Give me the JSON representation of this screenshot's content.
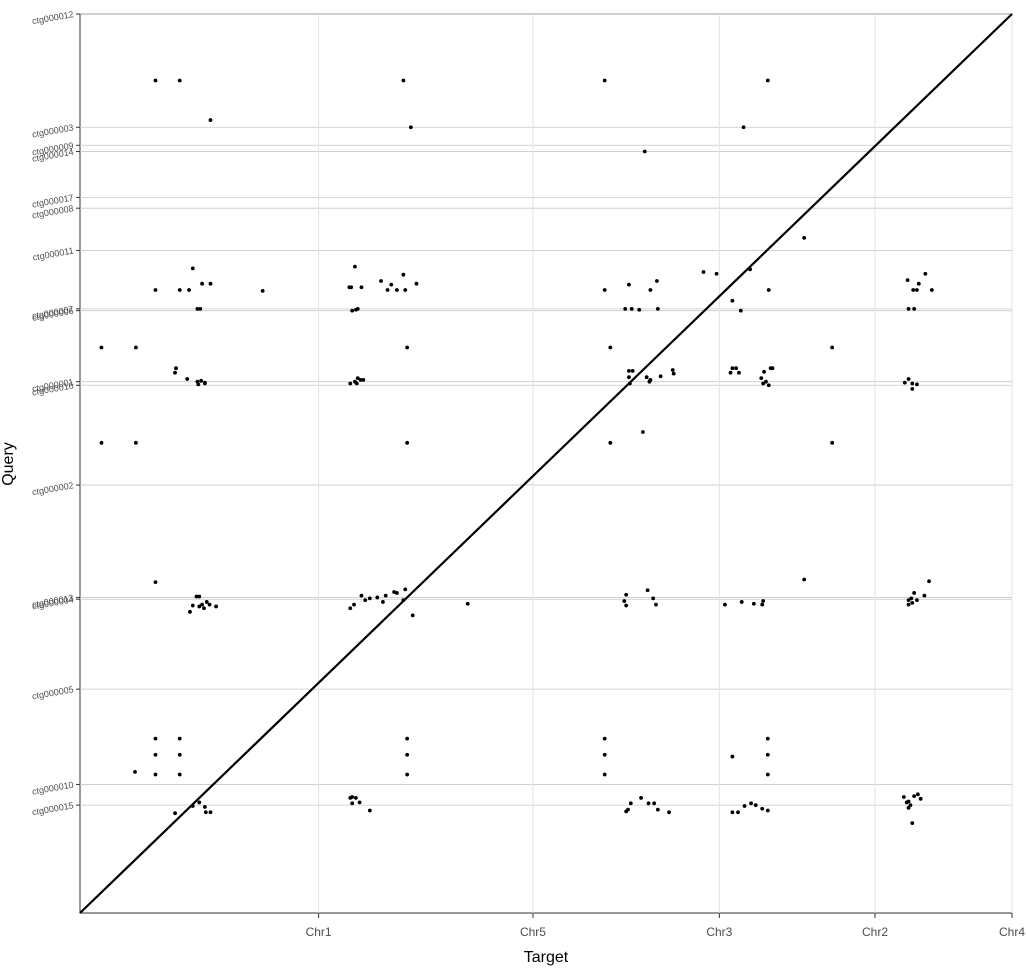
{
  "chart_data": {
    "type": "scatter",
    "xlabel": "Target",
    "ylabel": "Query",
    "xlim": [
      0,
      100
    ],
    "ylim": [
      0,
      100
    ],
    "grid": true,
    "x_breaks": [
      {
        "label": "Chr1",
        "value": 25.6
      },
      {
        "label": "Chr5",
        "value": 48.6
      },
      {
        "label": "Chr3",
        "value": 68.6
      },
      {
        "label": "Chr2",
        "value": 85.3
      },
      {
        "label": "Chr4",
        "value": 100
      }
    ],
    "y_breaks": [
      {
        "label": "ctg000012",
        "value": 100
      },
      {
        "label": "ctg000003",
        "value": 87.4
      },
      {
        "label": "ctg000009",
        "value": 85.4
      },
      {
        "label": "ctg000014",
        "value": 84.7
      },
      {
        "label": "ctg000017",
        "value": 79.6
      },
      {
        "label": "ctg000008",
        "value": 78.4
      },
      {
        "label": "ctg000011",
        "value": 73.7
      },
      {
        "label": "ctg000007",
        "value": 67.2
      },
      {
        "label": "ctg000006",
        "value": 67.0
      },
      {
        "label": "ctg000001",
        "value": 59.1
      },
      {
        "label": "ctg000016",
        "value": 58.7
      },
      {
        "label": "ctg000002",
        "value": 47.6
      },
      {
        "label": "ctg000013",
        "value": 35.1
      },
      {
        "label": "ctg000004",
        "value": 34.9
      },
      {
        "label": "ctg000005",
        "value": 24.9
      },
      {
        "label": "ctg000010",
        "value": 14.3
      },
      {
        "label": "ctg000015",
        "value": 12.0
      }
    ],
    "diagonal": [
      [
        0,
        0
      ],
      [
        100,
        100
      ]
    ],
    "series": [
      {
        "points": [
          [
            8.1,
            92.6
          ],
          [
            10.7,
            92.6
          ],
          [
            34.7,
            92.6
          ],
          [
            56.3,
            92.6
          ],
          [
            73.8,
            92.6
          ],
          [
            14.0,
            88.2
          ],
          [
            35.5,
            87.4
          ],
          [
            71.2,
            87.4
          ],
          [
            60.6,
            84.7
          ],
          [
            77.7,
            75.1
          ],
          [
            12.1,
            71.7
          ],
          [
            11.7,
            69.3
          ],
          [
            13.1,
            70.0
          ],
          [
            14.0,
            70.0
          ],
          [
            8.1,
            69.3
          ],
          [
            10.7,
            69.3
          ],
          [
            12.6,
            67.2
          ],
          [
            12.9,
            67.2
          ],
          [
            29.5,
            71.9
          ],
          [
            34.7,
            71.0
          ],
          [
            32.3,
            70.3
          ],
          [
            33.4,
            69.9
          ],
          [
            36.1,
            70.0
          ],
          [
            29.1,
            69.6
          ],
          [
            30.2,
            69.6
          ],
          [
            28.9,
            69.6
          ],
          [
            33.0,
            69.3
          ],
          [
            34.0,
            69.3
          ],
          [
            34.9,
            69.3
          ],
          [
            29.2,
            67.0
          ],
          [
            29.6,
            67.1
          ],
          [
            29.8,
            67.2
          ],
          [
            19.6,
            69.2
          ],
          [
            56.3,
            69.3
          ],
          [
            58.9,
            69.9
          ],
          [
            61.9,
            70.3
          ],
          [
            61.2,
            69.3
          ],
          [
            60.0,
            67.1
          ],
          [
            59.2,
            67.2
          ],
          [
            62.0,
            67.2
          ],
          [
            58.5,
            67.2
          ],
          [
            66.9,
            71.3
          ],
          [
            68.3,
            71.1
          ],
          [
            71.9,
            71.6
          ],
          [
            73.9,
            69.3
          ],
          [
            70.9,
            67.0
          ],
          [
            70.0,
            68.1
          ],
          [
            88.8,
            70.4
          ],
          [
            88.9,
            67.2
          ],
          [
            89.4,
            69.3
          ],
          [
            90.0,
            70.0
          ],
          [
            89.5,
            67.2
          ],
          [
            89.8,
            69.3
          ],
          [
            90.7,
            71.1
          ],
          [
            91.4,
            69.3
          ],
          [
            2.3,
            62.9
          ],
          [
            6.0,
            62.9
          ],
          [
            35.1,
            62.9
          ],
          [
            56.9,
            62.9
          ],
          [
            80.7,
            62.9
          ],
          [
            2.3,
            52.3
          ],
          [
            6.0,
            52.3
          ],
          [
            35.1,
            52.3
          ],
          [
            56.9,
            52.3
          ],
          [
            80.7,
            52.3
          ],
          [
            10.3,
            60.6
          ],
          [
            10.2,
            60.1
          ],
          [
            11.5,
            59.4
          ],
          [
            12.6,
            59.1
          ],
          [
            12.7,
            58.8
          ],
          [
            13.0,
            59.2
          ],
          [
            13.4,
            59.0
          ],
          [
            13.4,
            58.9
          ],
          [
            29.0,
            58.9
          ],
          [
            29.5,
            59.1
          ],
          [
            29.7,
            58.9
          ],
          [
            29.8,
            59.5
          ],
          [
            30.1,
            59.3
          ],
          [
            30.4,
            59.3
          ],
          [
            58.9,
            60.3
          ],
          [
            59.3,
            60.3
          ],
          [
            58.9,
            59.6
          ],
          [
            59.0,
            58.9
          ],
          [
            60.8,
            59.6
          ],
          [
            61.2,
            59.3
          ],
          [
            62.3,
            59.7
          ],
          [
            63.6,
            60.4
          ],
          [
            63.7,
            60.0
          ],
          [
            61.1,
            59.1
          ],
          [
            60.4,
            53.5
          ],
          [
            70.0,
            60.6
          ],
          [
            70.4,
            60.6
          ],
          [
            69.8,
            60.1
          ],
          [
            70.7,
            60.1
          ],
          [
            73.4,
            60.2
          ],
          [
            74.1,
            60.6
          ],
          [
            74.3,
            60.6
          ],
          [
            73.1,
            59.5
          ],
          [
            73.6,
            59.1
          ],
          [
            73.3,
            58.9
          ],
          [
            73.9,
            58.7
          ],
          [
            88.5,
            59.0
          ],
          [
            88.9,
            59.4
          ],
          [
            89.3,
            58.3
          ],
          [
            89.3,
            58.9
          ],
          [
            89.8,
            58.8
          ],
          [
            8.1,
            36.8
          ],
          [
            12.5,
            35.2
          ],
          [
            12.8,
            35.2
          ],
          [
            12.1,
            34.2
          ],
          [
            13.1,
            34.3
          ],
          [
            13.6,
            34.6
          ],
          [
            13.9,
            34.3
          ],
          [
            14.6,
            34.1
          ],
          [
            11.8,
            33.5
          ],
          [
            12.8,
            34.1
          ],
          [
            13.3,
            33.9
          ],
          [
            35.7,
            33.1
          ],
          [
            41.6,
            34.4
          ],
          [
            29.0,
            33.9
          ],
          [
            29.4,
            34.3
          ],
          [
            30.6,
            34.8
          ],
          [
            34.7,
            34.8
          ],
          [
            31.1,
            35.0
          ],
          [
            31.9,
            35.1
          ],
          [
            32.5,
            34.6
          ],
          [
            32.8,
            35.3
          ],
          [
            33.7,
            35.7
          ],
          [
            30.2,
            35.3
          ],
          [
            34.9,
            36.0
          ],
          [
            34.0,
            35.6
          ],
          [
            58.6,
            35.4
          ],
          [
            58.4,
            34.7
          ],
          [
            58.6,
            34.2
          ],
          [
            60.9,
            35.9
          ],
          [
            61.5,
            35.0
          ],
          [
            61.8,
            34.3
          ],
          [
            69.2,
            34.3
          ],
          [
            71.0,
            34.6
          ],
          [
            72.3,
            34.4
          ],
          [
            73.2,
            34.3
          ],
          [
            73.3,
            34.7
          ],
          [
            77.7,
            37.1
          ],
          [
            88.9,
            34.8
          ],
          [
            89.2,
            35.0
          ],
          [
            88.9,
            34.3
          ],
          [
            89.5,
            35.6
          ],
          [
            89.8,
            34.8
          ],
          [
            90.6,
            35.3
          ],
          [
            91.1,
            36.9
          ],
          [
            89.3,
            34.5
          ],
          [
            8.1,
            19.4
          ],
          [
            10.7,
            19.4
          ],
          [
            8.1,
            17.6
          ],
          [
            10.7,
            17.6
          ],
          [
            8.1,
            15.4
          ],
          [
            10.7,
            15.4
          ],
          [
            5.9,
            15.7
          ],
          [
            35.1,
            19.4
          ],
          [
            35.1,
            17.6
          ],
          [
            35.1,
            15.4
          ],
          [
            56.3,
            19.4
          ],
          [
            56.3,
            17.6
          ],
          [
            56.3,
            15.4
          ],
          [
            73.8,
            19.4
          ],
          [
            73.8,
            17.6
          ],
          [
            73.8,
            15.4
          ],
          [
            70.0,
            17.4
          ],
          [
            12.8,
            12.3
          ],
          [
            13.4,
            11.8
          ],
          [
            12.1,
            11.9
          ],
          [
            13.5,
            11.2
          ],
          [
            14.0,
            11.2
          ],
          [
            10.2,
            11.1
          ],
          [
            29.0,
            12.8
          ],
          [
            30.0,
            12.3
          ],
          [
            31.1,
            11.4
          ],
          [
            29.2,
            12.9
          ],
          [
            29.6,
            12.8
          ],
          [
            29.2,
            12.2
          ],
          [
            58.6,
            11.3
          ],
          [
            58.8,
            11.5
          ],
          [
            59.1,
            12.2
          ],
          [
            60.2,
            12.8
          ],
          [
            61.0,
            12.2
          ],
          [
            61.6,
            12.2
          ],
          [
            62.0,
            11.5
          ],
          [
            63.2,
            11.2
          ],
          [
            70.0,
            11.2
          ],
          [
            70.6,
            11.2
          ],
          [
            71.3,
            11.9
          ],
          [
            72.0,
            12.2
          ],
          [
            72.5,
            12.0
          ],
          [
            73.2,
            11.6
          ],
          [
            73.8,
            11.4
          ],
          [
            88.4,
            12.9
          ],
          [
            88.7,
            12.3
          ],
          [
            89.1,
            12.0
          ],
          [
            89.5,
            13.0
          ],
          [
            89.9,
            13.2
          ],
          [
            90.2,
            12.7
          ],
          [
            88.9,
            11.7
          ],
          [
            89.3,
            10.0
          ],
          [
            88.9,
            12.4
          ]
        ]
      }
    ]
  }
}
